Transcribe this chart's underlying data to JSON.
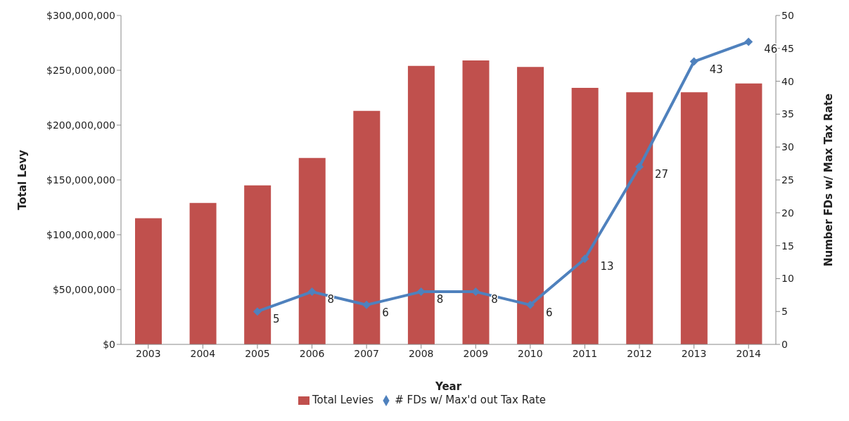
{
  "chart_data": {
    "type": "bar",
    "xlabel": "Year",
    "ylabel": "Total Levy",
    "y2label": "Number FDs w/ Max Tax  Rate",
    "categories": [
      "2003",
      "2004",
      "2005",
      "2006",
      "2007",
      "2008",
      "2009",
      "2010",
      "2011",
      "2012",
      "2013",
      "2014"
    ],
    "series": [
      {
        "name": "Total Levies",
        "color": "#c0504d",
        "values": [
          115000000,
          129000000,
          145000000,
          170000000,
          213000000,
          254000000,
          259000000,
          253000000,
          234000000,
          230000000,
          230000000,
          238000000
        ]
      },
      {
        "name": "# FDs w/ Max'd out Tax Rate",
        "type": "line",
        "axis": "y2",
        "color": "#4f81bd",
        "marker": "diamond",
        "data_labels": true,
        "values": [
          null,
          null,
          5,
          8,
          6,
          8,
          8,
          6,
          13,
          27,
          43,
          46
        ]
      }
    ],
    "ylim": [
      0,
      300000000
    ],
    "yticks": [
      {
        "value": 0,
        "label": "$0"
      },
      {
        "value": 50000000,
        "label": "$50,000,000"
      },
      {
        "value": 100000000,
        "label": "$100,000,000"
      },
      {
        "value": 150000000,
        "label": "$150,000,000"
      },
      {
        "value": 200000000,
        "label": "$200,000,000"
      },
      {
        "value": 250000000,
        "label": "$250,000,000"
      },
      {
        "value": 300000000,
        "label": "$300,000,000"
      }
    ],
    "y2lim": [
      0,
      50
    ],
    "y2ticks": [
      0,
      5,
      10,
      15,
      20,
      25,
      30,
      35,
      40,
      45,
      50
    ],
    "grid": false,
    "legend": "bottom"
  }
}
